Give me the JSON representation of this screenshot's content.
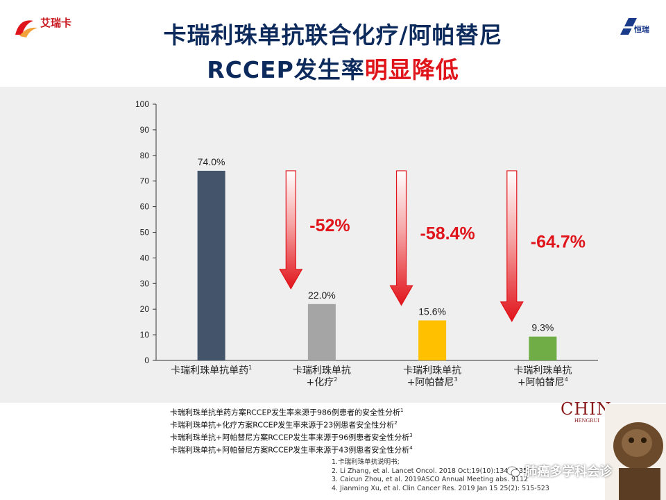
{
  "header": {
    "title_line1": "卡瑞利珠单抗联合化疗/阿帕替尼",
    "title_line2_normal": "RCCEP发生率",
    "title_line2_red": "明显降低",
    "logo_left_text": "艾瑞卡",
    "logo_right_text": "恒瑞"
  },
  "chart_data": {
    "type": "bar",
    "categories": [
      {
        "line1": "卡瑞利珠单抗单药",
        "sup": "1",
        "line2": ""
      },
      {
        "line1": "卡瑞利珠单抗",
        "line2": "+化疗",
        "sup": "2"
      },
      {
        "line1": "卡瑞利珠单抗",
        "line2": "+阿帕替尼",
        "sup": "3"
      },
      {
        "line1": "卡瑞利珠单抗",
        "line2": "+阿帕替尼",
        "sup": "4"
      }
    ],
    "values": [
      74.0,
      22.0,
      15.6,
      9.3
    ],
    "value_labels": [
      "74.0%",
      "22.0%",
      "15.6%",
      "9.3%"
    ],
    "colors": [
      "#44546a",
      "#a5a5a5",
      "#ffc000",
      "#70ad47"
    ],
    "ylim": [
      0,
      100
    ],
    "yticks": [
      0,
      10,
      20,
      30,
      40,
      50,
      60,
      70,
      80,
      90,
      100
    ],
    "reductions": [
      "-52%",
      "-58.4%",
      "-64.7%"
    ],
    "reduction_color": "#e0141b",
    "title": "",
    "xlabel": "",
    "ylabel": ""
  },
  "notes": {
    "lines": [
      {
        "text": "卡瑞利珠单抗单药方案RCCEP发生率来源于986例患者的安全性分析",
        "sup": "1"
      },
      {
        "text": "卡瑞利珠单抗+化疗方案RCCEP发生率来源于23例患者安全性分析",
        "sup": "2"
      },
      {
        "text": "卡瑞利珠单抗+阿帕替尼方案RCCEP发生率来源于96例患者安全性分析",
        "sup": "3"
      },
      {
        "text": "卡瑞利珠单抗+阿帕替尼方案RCCEP发生率来源于43例患者安全性分析",
        "sup": "4"
      }
    ],
    "refs": [
      "1.卡瑞利珠单抗说明书;",
      "2. Li Zhang, et al. Lancet Oncol. 2018 Oct;19(10):1348-1358",
      "3. Caicun Zhou, et al. 2019ASCO Annual Meeting abs. 9112",
      "4. Jianming Xu, et al. Clin Cancer Res. 2019 Jan 15 25(2): 515-523"
    ]
  },
  "branding": {
    "chin_big": "CHIN",
    "chin_small": "HENGRUI",
    "watermark": "肺癌多学科会诊"
  }
}
